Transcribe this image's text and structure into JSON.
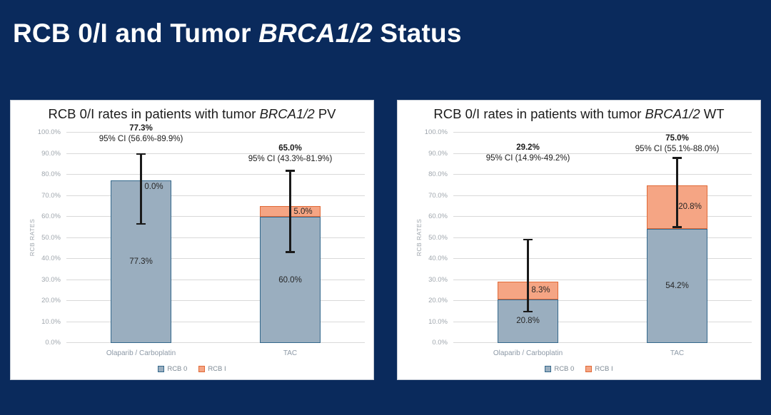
{
  "slide": {
    "title": {
      "prefix": "RCB 0/I and Tumor ",
      "italic": "BRCA1/2",
      "suffix": " Status"
    },
    "background_color": "#0a2a5c"
  },
  "colors": {
    "rcb0_fill": "#9aaebf",
    "rcb0_border": "#34688c",
    "rcb1_fill": "#f5a584",
    "rcb1_border": "#e06a38",
    "gridline": "#d9d9d9",
    "error_bar": "#1a1a1a",
    "axis_text": "#9fa6ad"
  },
  "chart_data": [
    {
      "type": "bar",
      "stacked": true,
      "title": {
        "prefix": "RCB 0/I rates in patients with tumor ",
        "italic": "BRCA1/2",
        "suffix": " PV"
      },
      "ylabel": "RCB RATES",
      "ylim": [
        0,
        100
      ],
      "ytick_step": 10,
      "grid": true,
      "legend_position": "bottom",
      "categories": [
        "Olaparib / Carboplatin",
        "TAC"
      ],
      "series": [
        {
          "name": "RCB 0",
          "values": [
            77.3,
            60.0
          ],
          "labels": [
            "77.3%",
            "60.0%"
          ],
          "fill": "#9aaebf",
          "border": "#34688c",
          "label_dx": 0
        },
        {
          "name": "RCB I",
          "values": [
            0.0,
            5.0
          ],
          "labels": [
            "0.0%",
            "5.0%"
          ],
          "fill": "#f5a584",
          "border": "#e06a38",
          "label_dx": 18
        }
      ],
      "totals": [
        "77.3%",
        "65.0%"
      ],
      "ci": [
        "95% CI (56.6%-89.9%)",
        "95% CI (43.3%-81.9%)"
      ],
      "error_bars": [
        {
          "low": 56.6,
          "high": 89.9
        },
        {
          "low": 43.3,
          "high": 81.9
        }
      ],
      "ann_y": [
        104.3,
        94.8
      ]
    },
    {
      "type": "bar",
      "stacked": true,
      "title": {
        "prefix": "RCB 0/I rates in patients with tumor ",
        "italic": "BRCA1/2",
        "suffix": " WT"
      },
      "ylabel": "RCB RATES",
      "ylim": [
        0,
        100
      ],
      "ytick_step": 10,
      "grid": true,
      "legend_position": "bottom",
      "categories": [
        "Olaparib / Carboplatin",
        "TAC"
      ],
      "series": [
        {
          "name": "RCB 0",
          "values": [
            20.8,
            54.2
          ],
          "labels": [
            "20.8%",
            "54.2%"
          ],
          "fill": "#9aaebf",
          "border": "#34688c",
          "label_dx": 0
        },
        {
          "name": "RCB I",
          "values": [
            8.3,
            20.8
          ],
          "labels": [
            "8.3%",
            "20.8%"
          ],
          "fill": "#f5a584",
          "border": "#e06a38",
          "label_dx": 18
        }
      ],
      "totals": [
        "29.2%",
        "75.0%"
      ],
      "ci": [
        "95% CI (14.9%-49.2%)",
        "95% CI (55.1%-88.0%)"
      ],
      "error_bars": [
        {
          "low": 14.9,
          "high": 49.2
        },
        {
          "low": 55.1,
          "high": 88.0
        }
      ],
      "ann_y": [
        95.1,
        99.6
      ]
    }
  ]
}
